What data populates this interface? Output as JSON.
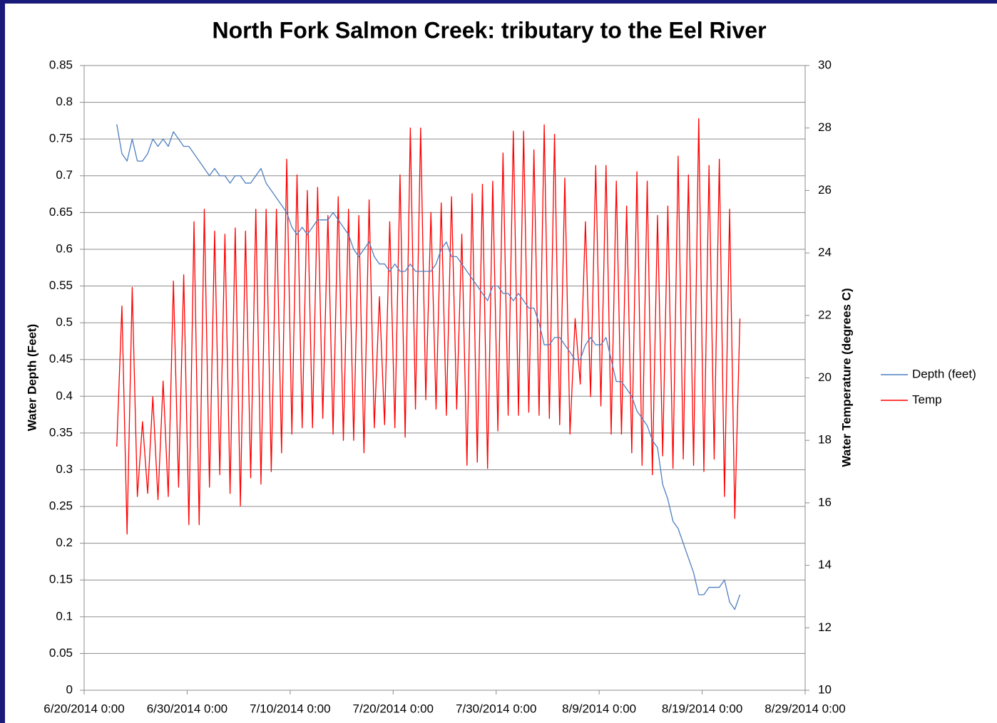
{
  "chart_data": {
    "type": "line",
    "title": "North Fork Salmon Creek: tributary to the Eel River",
    "y_label": "Water Depth (Feet)",
    "y2_label": "Water Temperature (degrees C)",
    "xlim": [
      "6/20/2014 0:00",
      "8/29/2014 0:00"
    ],
    "xticks": [
      "6/20/2014 0:00",
      "6/30/2014 0:00",
      "7/10/2014 0:00",
      "7/20/2014 0:00",
      "7/30/2014 0:00",
      "8/9/2014 0:00",
      "8/19/2014 0:00",
      "8/29/2014 0:00"
    ],
    "ylim": [
      0,
      0.85
    ],
    "yticks": [
      0,
      0.05,
      0.1,
      0.15,
      0.2,
      0.25,
      0.3,
      0.35,
      0.4,
      0.45,
      0.5,
      0.55,
      0.6,
      0.65,
      0.7,
      0.75,
      0.8,
      0.85
    ],
    "y2lim": [
      10,
      30
    ],
    "y2ticks": [
      10,
      12,
      14,
      16,
      18,
      20,
      22,
      24,
      26,
      28,
      30
    ],
    "grid": true,
    "legend": "right",
    "x": [
      "6/23/2014 4:00",
      "6/23/2014 16:00",
      "6/24/2014 4:00",
      "6/24/2014 16:00",
      "6/25/2014 4:00",
      "6/25/2014 16:00",
      "6/26/2014 4:00",
      "6/26/2014 16:00",
      "6/27/2014 4:00",
      "6/27/2014 16:00",
      "6/28/2014 4:00",
      "6/28/2014 16:00",
      "6/29/2014 4:00",
      "6/29/2014 16:00",
      "6/30/2014 4:00",
      "6/30/2014 16:00",
      "7/1/2014 4:00",
      "7/1/2014 16:00",
      "7/2/2014 4:00",
      "7/2/2014 16:00",
      "7/3/2014 4:00",
      "7/3/2014 16:00",
      "7/4/2014 4:00",
      "7/4/2014 16:00",
      "7/5/2014 4:00",
      "7/5/2014 16:00",
      "7/6/2014 4:00",
      "7/6/2014 16:00",
      "7/7/2014 4:00",
      "7/7/2014 16:00",
      "7/8/2014 4:00",
      "7/8/2014 16:00",
      "7/9/2014 4:00",
      "7/9/2014 16:00",
      "7/10/2014 4:00",
      "7/10/2014 16:00",
      "7/11/2014 4:00",
      "7/11/2014 16:00",
      "7/12/2014 4:00",
      "7/12/2014 16:00",
      "7/13/2014 4:00",
      "7/13/2014 16:00",
      "7/14/2014 4:00",
      "7/14/2014 16:00",
      "7/15/2014 4:00",
      "7/15/2014 16:00",
      "7/16/2014 4:00",
      "7/16/2014 16:00",
      "7/17/2014 4:00",
      "7/17/2014 16:00",
      "7/18/2014 4:00",
      "7/18/2014 16:00",
      "7/19/2014 4:00",
      "7/19/2014 16:00",
      "7/20/2014 4:00",
      "7/20/2014 16:00",
      "7/21/2014 4:00",
      "7/21/2014 16:00",
      "7/22/2014 4:00",
      "7/22/2014 16:00",
      "7/23/2014 4:00",
      "7/23/2014 16:00",
      "7/24/2014 4:00",
      "7/24/2014 16:00",
      "7/25/2014 4:00",
      "7/25/2014 16:00",
      "7/26/2014 4:00",
      "7/26/2014 16:00",
      "7/27/2014 4:00",
      "7/27/2014 16:00",
      "7/28/2014 4:00",
      "7/28/2014 16:00",
      "7/29/2014 4:00",
      "7/29/2014 16:00",
      "7/30/2014 4:00",
      "7/30/2014 16:00",
      "7/31/2014 4:00",
      "7/31/2014 16:00",
      "8/1/2014 4:00",
      "8/1/2014 16:00",
      "8/2/2014 4:00",
      "8/2/2014 16:00",
      "8/3/2014 4:00",
      "8/3/2014 16:00",
      "8/4/2014 4:00",
      "8/4/2014 16:00",
      "8/5/2014 4:00",
      "8/5/2014 16:00",
      "8/6/2014 4:00",
      "8/6/2014 16:00",
      "8/7/2014 4:00",
      "8/7/2014 16:00",
      "8/8/2014 4:00",
      "8/8/2014 16:00",
      "8/9/2014 4:00",
      "8/9/2014 16:00",
      "8/10/2014 4:00",
      "8/10/2014 16:00",
      "8/11/2014 4:00",
      "8/11/2014 16:00",
      "8/12/2014 4:00",
      "8/12/2014 16:00",
      "8/13/2014 4:00",
      "8/13/2014 16:00",
      "8/14/2014 4:00",
      "8/14/2014 16:00",
      "8/15/2014 4:00",
      "8/15/2014 16:00",
      "8/16/2014 4:00",
      "8/16/2014 16:00",
      "8/17/2014 4:00",
      "8/17/2014 16:00",
      "8/18/2014 4:00",
      "8/18/2014 16:00",
      "8/19/2014 4:00",
      "8/19/2014 16:00",
      "8/20/2014 4:00",
      "8/20/2014 16:00",
      "8/21/2014 4:00",
      "8/21/2014 16:00",
      "8/22/2014 4:00",
      "8/22/2014 16:00"
    ],
    "series": [
      {
        "name": "Depth (feet)",
        "color": "#4f7fbf",
        "axis": "y",
        "values": [
          0.77,
          0.73,
          0.72,
          0.75,
          0.72,
          0.72,
          0.73,
          0.75,
          0.74,
          0.75,
          0.74,
          0.76,
          0.75,
          0.74,
          0.74,
          0.73,
          0.72,
          0.71,
          0.7,
          0.71,
          0.7,
          0.7,
          0.69,
          0.7,
          0.7,
          0.69,
          0.69,
          0.7,
          0.71,
          0.69,
          0.68,
          0.67,
          0.66,
          0.65,
          0.63,
          0.62,
          0.63,
          0.62,
          0.63,
          0.64,
          0.64,
          0.64,
          0.65,
          0.64,
          0.63,
          0.62,
          0.6,
          0.59,
          0.6,
          0.61,
          0.59,
          0.58,
          0.58,
          0.57,
          0.58,
          0.57,
          0.57,
          0.58,
          0.57,
          0.57,
          0.57,
          0.57,
          0.58,
          0.6,
          0.61,
          0.59,
          0.59,
          0.58,
          0.57,
          0.56,
          0.55,
          0.54,
          0.53,
          0.55,
          0.55,
          0.54,
          0.54,
          0.53,
          0.54,
          0.53,
          0.52,
          0.52,
          0.5,
          0.47,
          0.47,
          0.48,
          0.48,
          0.47,
          0.46,
          0.45,
          0.45,
          0.47,
          0.48,
          0.47,
          0.47,
          0.48,
          0.45,
          0.42,
          0.42,
          0.41,
          0.4,
          0.38,
          0.37,
          0.36,
          0.34,
          0.33,
          0.28,
          0.26,
          0.23,
          0.22,
          0.2,
          0.18,
          0.16,
          0.13,
          0.13,
          0.14,
          0.14,
          0.14,
          0.15,
          0.12,
          0.11,
          0.13
        ]
      },
      {
        "name": "Temp",
        "color": "#ff0000",
        "axis": "y2",
        "values": [
          17.8,
          22.3,
          15.0,
          22.9,
          16.2,
          18.6,
          16.3,
          19.4,
          16.1,
          19.9,
          16.2,
          23.1,
          16.5,
          23.3,
          15.3,
          25.0,
          15.3,
          25.4,
          16.5,
          24.7,
          16.9,
          24.6,
          16.3,
          24.8,
          15.9,
          24.7,
          16.8,
          25.4,
          16.6,
          25.4,
          17.0,
          25.4,
          17.6,
          27.0,
          18.2,
          26.5,
          18.4,
          26.0,
          18.4,
          26.1,
          18.7,
          25.2,
          18.2,
          25.8,
          18.0,
          25.4,
          18.0,
          25.2,
          17.6,
          25.7,
          18.4,
          22.6,
          18.5,
          25.0,
          18.4,
          26.5,
          18.1,
          28.0,
          19.0,
          28.0,
          19.3,
          25.3,
          19.0,
          25.6,
          18.8,
          25.8,
          19.0,
          24.6,
          17.2,
          25.9,
          17.3,
          26.2,
          17.1,
          26.3,
          18.3,
          27.2,
          18.8,
          27.9,
          18.8,
          27.9,
          18.9,
          27.3,
          18.8,
          28.1,
          18.7,
          27.8,
          18.5,
          26.4,
          18.2,
          21.9,
          19.8,
          25.0,
          19.4,
          26.8,
          19.1,
          26.8,
          18.2,
          26.3,
          18.2,
          25.5,
          17.6,
          26.6,
          17.2,
          26.3,
          16.9,
          25.2,
          17.5,
          25.5,
          17.1,
          27.1,
          17.4,
          26.5,
          17.2,
          28.3,
          17.0,
          26.8,
          17.4,
          27.0,
          16.2,
          25.4,
          15.5,
          21.9
        ]
      }
    ]
  }
}
